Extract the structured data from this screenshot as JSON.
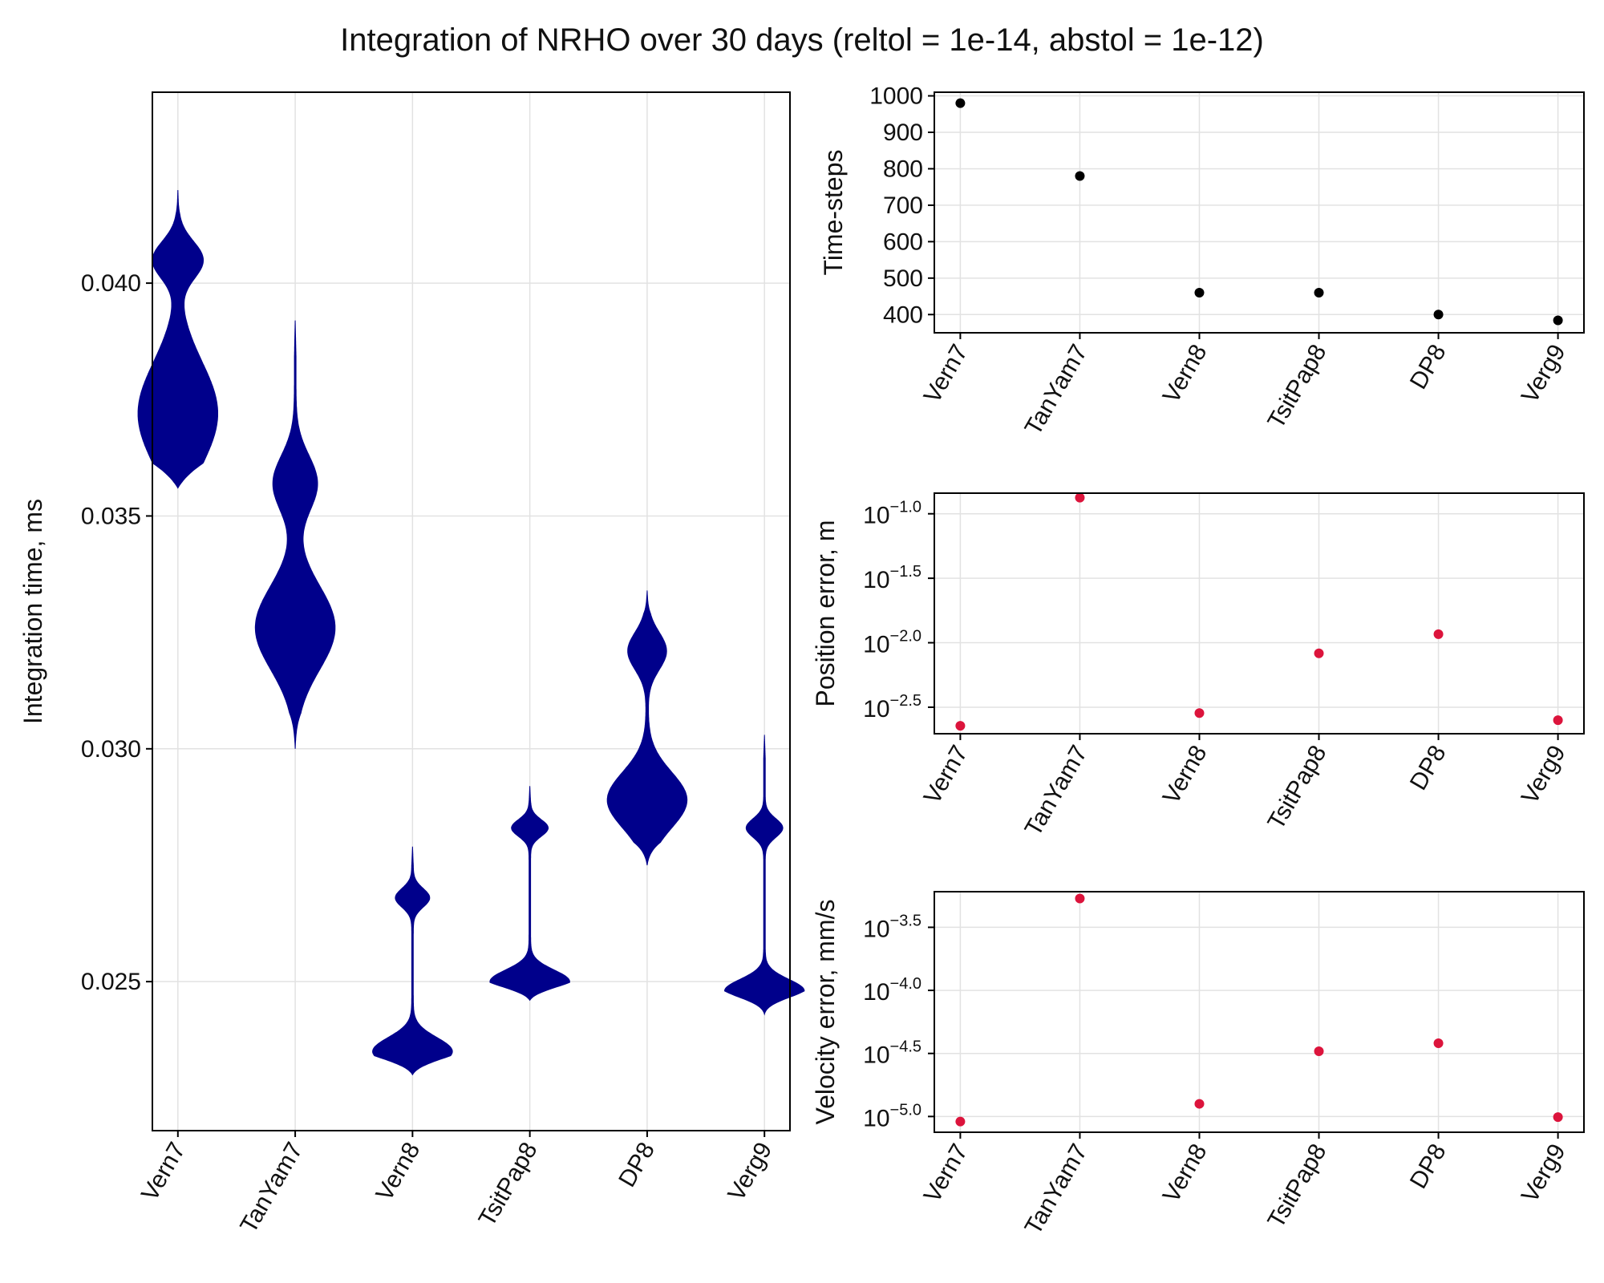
{
  "title": "Integration of NRHO over 30 days (reltol = 1e-14, abstol = 1e-12)",
  "colors": {
    "violin": "#00008b",
    "steps": "#000000",
    "error": "#dc143c",
    "grid": "#e2e2e2"
  },
  "chart_data": [
    {
      "type": "violin",
      "name": "integration-time",
      "ylabel": "Integration time, ms",
      "categories": [
        "Vern7",
        "TanYam7",
        "Vern8",
        "TsitPap8",
        "DP8",
        "Verg9"
      ],
      "ylim": [
        0.0218,
        0.0441
      ],
      "yticks": [
        0.025,
        0.03,
        0.035,
        0.04
      ],
      "ytick_labels": [
        "0.025",
        "0.030",
        "0.035",
        "0.040"
      ],
      "grid": true,
      "distributions": [
        {
          "range": [
            0.0356,
            0.042
          ],
          "modes": [
            {
              "center": 0.0372,
              "width": 0.0011,
              "amp": 1.0
            },
            {
              "center": 0.0405,
              "width": 0.0004,
              "amp": 0.62
            }
          ]
        },
        {
          "range": [
            0.03,
            0.0392
          ],
          "modes": [
            {
              "center": 0.0326,
              "width": 0.0009,
              "amp": 1.0
            },
            {
              "center": 0.0357,
              "width": 0.0006,
              "amp": 0.55
            }
          ]
        },
        {
          "range": [
            0.023,
            0.0279
          ],
          "modes": [
            {
              "center": 0.0235,
              "width": 0.0003,
              "amp": 1.0
            },
            {
              "center": 0.0268,
              "width": 0.0002,
              "amp": 0.42
            }
          ]
        },
        {
          "range": [
            0.0246,
            0.0292
          ],
          "modes": [
            {
              "center": 0.025,
              "width": 0.00025,
              "amp": 1.0
            },
            {
              "center": 0.0283,
              "width": 0.00018,
              "amp": 0.45
            }
          ]
        },
        {
          "range": [
            0.0275,
            0.0334
          ],
          "modes": [
            {
              "center": 0.0289,
              "width": 0.0006,
              "amp": 0.8
            },
            {
              "center": 0.0321,
              "width": 0.0004,
              "amp": 0.38
            }
          ]
        },
        {
          "range": [
            0.0243,
            0.0303
          ],
          "modes": [
            {
              "center": 0.0248,
              "width": 0.00025,
              "amp": 1.0
            },
            {
              "center": 0.0283,
              "width": 0.0002,
              "amp": 0.45
            }
          ]
        }
      ]
    },
    {
      "type": "scatter",
      "name": "time-steps",
      "ylabel": "Time-steps",
      "categories": [
        "Vern7",
        "TanYam7",
        "Vern8",
        "TsitPap8",
        "DP8",
        "Verg9"
      ],
      "values": [
        980,
        780,
        460,
        460,
        400,
        384
      ],
      "ylim": [
        350,
        1010
      ],
      "yticks": [
        400,
        500,
        600,
        700,
        800,
        900,
        1000
      ],
      "ytick_labels": [
        "400",
        "500",
        "600",
        "700",
        "800",
        "900",
        "1000"
      ],
      "log": false,
      "grid": true
    },
    {
      "type": "scatter",
      "name": "position-error",
      "ylabel": "Position error, m",
      "categories": [
        "Vern7",
        "TanYam7",
        "Vern8",
        "TsitPap8",
        "DP8",
        "Verg9"
      ],
      "values": [
        0.00227,
        0.1334,
        0.00285,
        0.00828,
        0.01164,
        0.00251
      ],
      "ylim": [
        0.00197,
        0.1445
      ],
      "yticks": [
        0.003162,
        0.01,
        0.03162,
        0.1
      ],
      "ytick_labels": [
        [
          "10",
          "−2.5"
        ],
        [
          "10",
          "−2.0"
        ],
        [
          "10",
          "−1.5"
        ],
        [
          "10",
          "−1.0"
        ]
      ],
      "log": true,
      "grid": true
    },
    {
      "type": "scatter",
      "name": "velocity-error",
      "ylabel": "Velocity error, mm/s",
      "categories": [
        "Vern7",
        "TanYam7",
        "Vern8",
        "TsitPap8",
        "DP8",
        "Verg9"
      ],
      "values": [
        9.12e-06,
        0.000535,
        1.26e-05,
        3.29e-05,
        3.81e-05,
        9.88e-06
      ],
      "ylim": [
        7.5e-06,
        0.000606
      ],
      "yticks": [
        1e-05,
        3.162e-05,
        0.0001,
        0.0003162
      ],
      "ytick_labels": [
        [
          "10",
          "−5.0"
        ],
        [
          "10",
          "−4.5"
        ],
        [
          "10",
          "−4.0"
        ],
        [
          "10",
          "−3.5"
        ]
      ],
      "log": true,
      "grid": true
    }
  ]
}
